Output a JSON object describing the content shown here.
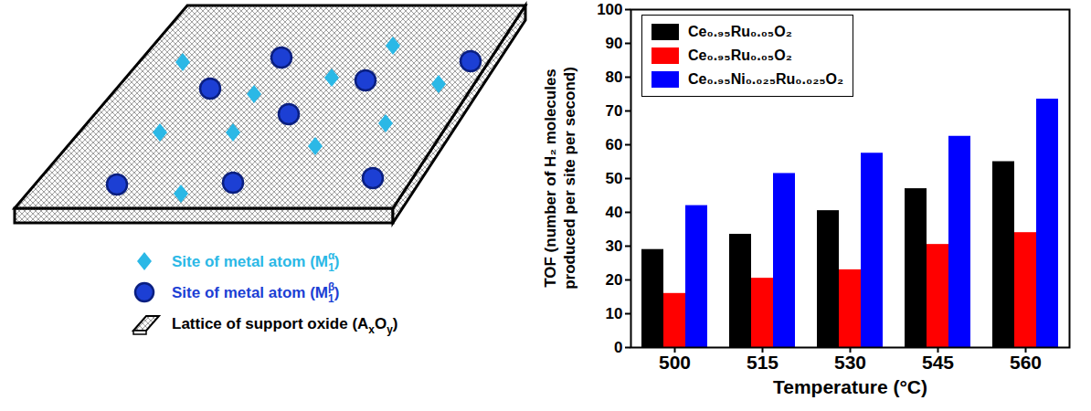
{
  "chart_data": {
    "type": "bar",
    "categories": [
      "500",
      "515",
      "530",
      "545",
      "560"
    ],
    "series": [
      {
        "name": "Ce₀.₉₅Ru₀.₀₅O₂",
        "color": "#000000",
        "values": [
          29,
          33.5,
          40.5,
          47,
          55
        ]
      },
      {
        "name": "Ce₀.₉₅Ru₀.₀₅O₂",
        "color": "#ff0000",
        "values": [
          16,
          20.5,
          23,
          30.5,
          34
        ]
      },
      {
        "name": "Ce₀.₉₅Ni₀.₀₂₅Ru₀.₀₂₅O₂",
        "color": "#0000ff",
        "values": [
          42,
          51.5,
          57.5,
          62.5,
          73.5
        ]
      }
    ],
    "x_label": "Temperature (°C)",
    "y_label": "TOF (number of H₂ molecules produced per site per second)",
    "ylim": [
      0,
      100
    ],
    "yticks": [
      0,
      10,
      20,
      30,
      40,
      50,
      60,
      70,
      80,
      90,
      100
    ],
    "grid": false,
    "legend": "top-left"
  },
  "diagram": {
    "legend": [
      {
        "marker": "diamond",
        "color": "#2bb8e6",
        "text": [
          "Site of metal atom (M",
          {
            "sup": "α"
          },
          {
            "sub": "1"
          },
          ")"
        ]
      },
      {
        "marker": "circle",
        "color": "#1c3fd4",
        "text": [
          "Site of metal atom (M",
          {
            "sup": "β"
          },
          {
            "sub": "1"
          },
          ")"
        ]
      },
      {
        "marker": "lattice",
        "color": "#000000",
        "text": [
          "Lattice of support oxide (A",
          {
            "sub": "x"
          },
          "O",
          {
            "sub": "y"
          },
          ")"
        ]
      }
    ]
  }
}
